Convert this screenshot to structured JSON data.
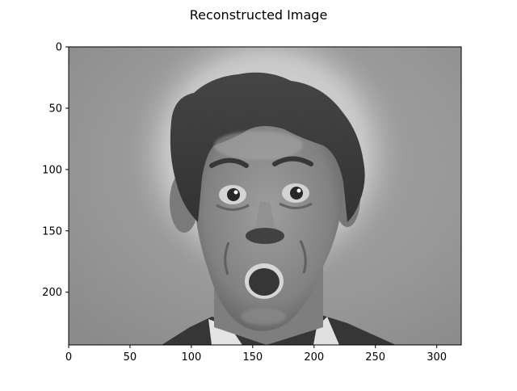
{
  "chart_data": {
    "type": "heatmap",
    "title": "Reconstructed Image",
    "xlabel": "",
    "ylabel": "",
    "xlim": [
      0,
      320
    ],
    "ylim": [
      243,
      0
    ],
    "xticks": [
      0,
      50,
      100,
      150,
      200,
      250,
      300
    ],
    "yticks": [
      0,
      50,
      100,
      150,
      200
    ],
    "colormap": "gray",
    "grid": false,
    "legend": "none"
  },
  "colors": {
    "frame": "#000000",
    "background": "#ffffff"
  }
}
